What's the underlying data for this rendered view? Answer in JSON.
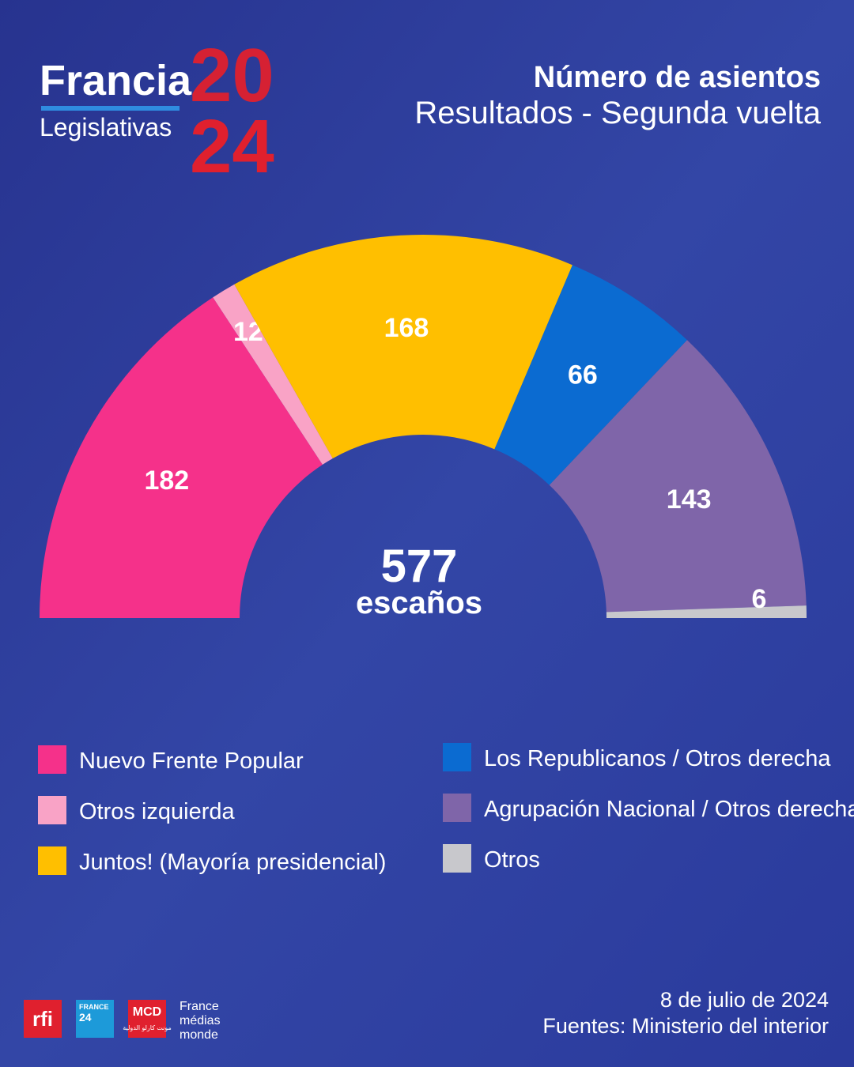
{
  "chart_data": {
    "type": "half-donut",
    "brand": {
      "name": "Francia",
      "subname": "Legislativas",
      "year_top": "20",
      "year_bottom": "24"
    },
    "title": "Número de asientos",
    "subtitle": "Resultados - Segunda vuelta",
    "total": 577,
    "total_label": "escaños",
    "series": [
      {
        "name": "Nuevo Frente Popular",
        "color": "#f5318a",
        "values": [
          182
        ]
      },
      {
        "name": "Otros izquierda",
        "color": "#f9a3c6",
        "values": [
          12
        ]
      },
      {
        "name": "Juntos! (Mayoría presidencial)",
        "color": "#ffbf00",
        "values": [
          168
        ]
      },
      {
        "name": "Los Republicanos / Otros derecha",
        "color": "#0b6bd1",
        "values": [
          66
        ]
      },
      {
        "name": "Agrupación Nacional / Otros derecha",
        "color": "#7f65a9",
        "values": [
          143
        ]
      },
      {
        "name": "Otros",
        "color": "#c8c8cc",
        "values": [
          6
        ]
      }
    ],
    "date": "8 de julio de 2024",
    "source": "Fuentes: Ministerio del interior",
    "logos": {
      "rfi": "rfi",
      "france24_top": "FRANCE",
      "france24_bottom": "24",
      "mcd": "MCD",
      "mcd_arabic": "مونت كارلو الدولية",
      "fmm": [
        "France",
        "médias",
        "monde"
      ]
    }
  }
}
